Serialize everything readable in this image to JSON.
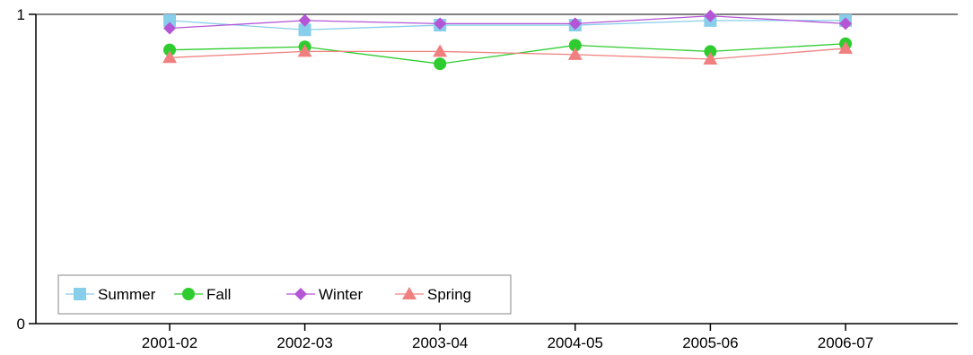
{
  "chart_data": {
    "type": "line",
    "title": "",
    "xlabel": "",
    "ylabel": "",
    "categories": [
      "2001-02",
      "2002-03",
      "2003-04",
      "2004-05",
      "2005-06",
      "2006-07"
    ],
    "ylim": [
      0,
      1
    ],
    "yticks": [
      "0",
      "1"
    ],
    "grid": false,
    "legend_position": "bottom-left",
    "series": [
      {
        "name": "Summer",
        "color": "#87ceeb",
        "marker": "square",
        "values": [
          0.98,
          0.95,
          0.965,
          0.965,
          0.98,
          0.98
        ]
      },
      {
        "name": "Fall",
        "color": "#2ecc2e",
        "marker": "circle",
        "values": [
          0.885,
          0.895,
          0.84,
          0.9,
          0.88,
          0.905
        ]
      },
      {
        "name": "Winter",
        "color": "#b455d6",
        "marker": "diamond",
        "values": [
          0.955,
          0.98,
          0.97,
          0.97,
          0.995,
          0.97
        ]
      },
      {
        "name": "Spring",
        "color": "#f08080",
        "marker": "triangle",
        "values": [
          0.86,
          0.88,
          0.88,
          0.87,
          0.855,
          0.89
        ]
      }
    ]
  }
}
